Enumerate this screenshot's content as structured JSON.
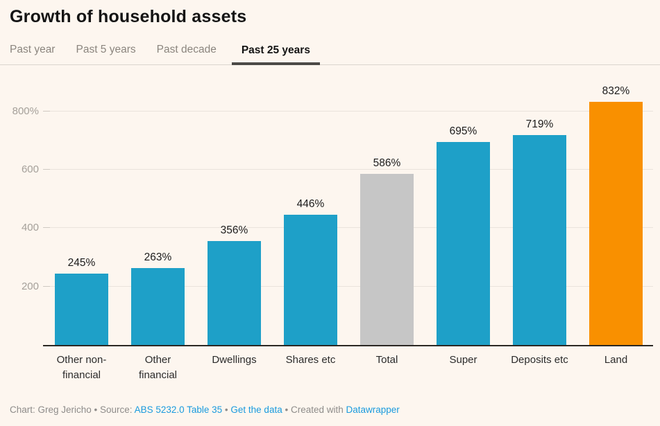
{
  "header": {
    "title": "Growth of household assets"
  },
  "tabs": {
    "items": [
      {
        "label": "Past year",
        "active": false
      },
      {
        "label": "Past 5 years",
        "active": false
      },
      {
        "label": "Past decade",
        "active": false
      },
      {
        "label": "Past 25 years",
        "active": true
      }
    ]
  },
  "chart_data": {
    "type": "bar",
    "title": "Growth of household assets",
    "subtitle_tab_selected": "Past 25 years",
    "unit": "%",
    "categories": [
      "Other non-financial",
      "Other financial",
      "Dwellings",
      "Shares etc",
      "Total",
      "Super",
      "Deposits etc",
      "Land"
    ],
    "values": [
      245,
      263,
      356,
      446,
      586,
      695,
      719,
      832
    ],
    "value_labels": [
      "245%",
      "263%",
      "356%",
      "446%",
      "586%",
      "695%",
      "719%",
      "832%"
    ],
    "bar_colors": [
      "#1EA0C8",
      "#1EA0C8",
      "#1EA0C8",
      "#1EA0C8",
      "#C6C6C6",
      "#1EA0C8",
      "#1EA0C8",
      "#F99000"
    ],
    "xlabel": "",
    "ylabel": "",
    "ylim": [
      0,
      920
    ],
    "yticks": [
      {
        "value": 200,
        "label": "200"
      },
      {
        "value": 400,
        "label": "400"
      },
      {
        "value": 600,
        "label": "600"
      },
      {
        "value": 800,
        "label": "800%"
      }
    ],
    "grid": "horizontal-only",
    "legend": "none"
  },
  "footer": {
    "prefix": "Chart: Greg Jericho • Source: ",
    "source_link": "ABS 5232.0 Table 35",
    "sep": " • ",
    "data_link": "Get the data",
    "created": " • Created with ",
    "tool_link": "Datawrapper"
  },
  "colors": {
    "background": "#FDF6EF",
    "bar_blue": "#1EA0C8",
    "bar_gray": "#C6C6C6",
    "bar_orange": "#F99000",
    "link_blue": "#1A9BDE",
    "active_tab_underline": "#4C4A47",
    "gridline": "#EAE3DC",
    "axis_line": "#2B2824"
  }
}
